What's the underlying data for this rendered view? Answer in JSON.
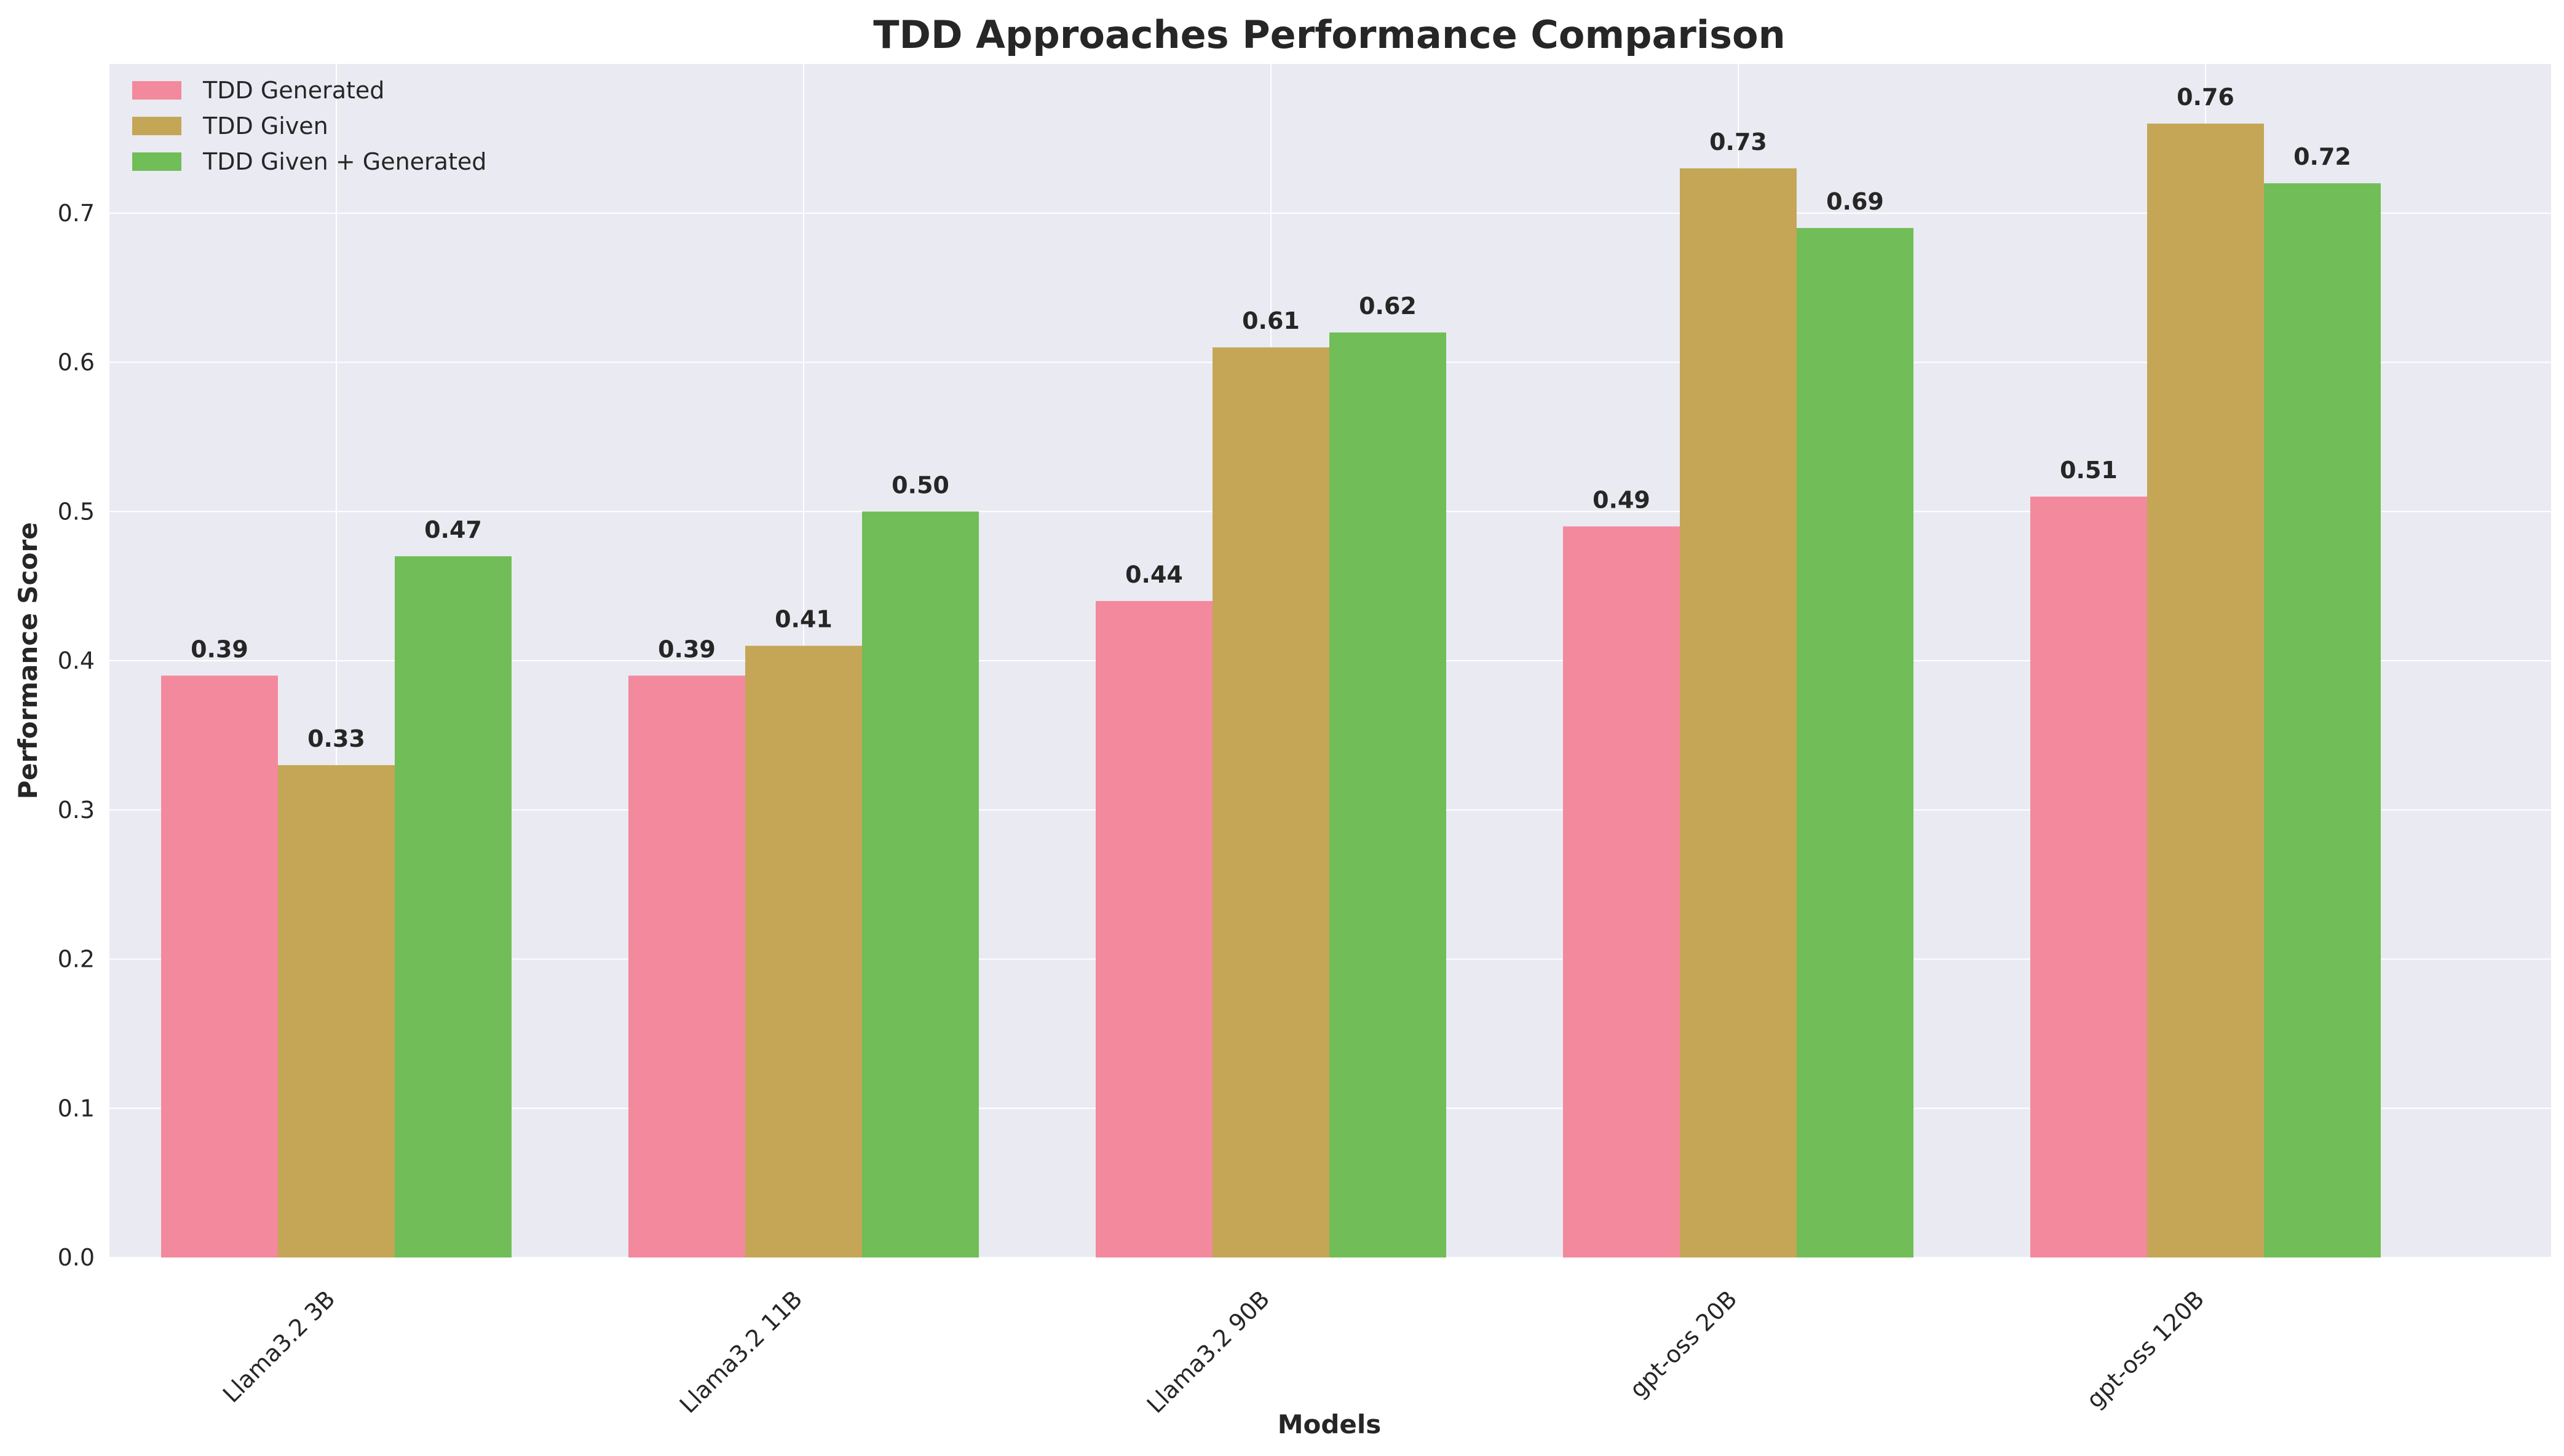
{
  "chart_data": {
    "type": "bar",
    "title": "TDD Approaches Performance Comparison",
    "xlabel": "Models",
    "ylabel": "Performance Score",
    "categories": [
      "Llama3.2 3B",
      "Llama3.2 11B",
      "Llama3.2 90B",
      "gpt-oss 20B",
      "gpt-oss 120B"
    ],
    "series": [
      {
        "name": "TDD Generated",
        "color": "#f3899d",
        "values": [
          0.39,
          0.39,
          0.44,
          0.49,
          0.51
        ]
      },
      {
        "name": "TDD Given",
        "color": "#c4a656",
        "values": [
          0.33,
          0.41,
          0.61,
          0.73,
          0.76
        ]
      },
      {
        "name": "TDD Given + Generated",
        "color": "#71bd57",
        "values": [
          0.47,
          0.5,
          0.62,
          0.69,
          0.72
        ]
      }
    ],
    "data_labels": [
      [
        "0.39",
        "0.39",
        "0.44",
        "0.49",
        "0.51"
      ],
      [
        "0.33",
        "0.41",
        "0.61",
        "0.73",
        "0.76"
      ],
      [
        "0.47",
        "0.50",
        "0.62",
        "0.69",
        "0.72"
      ]
    ],
    "yticks": [
      "0.0",
      "0.1",
      "0.2",
      "0.3",
      "0.4",
      "0.5",
      "0.6",
      "0.7"
    ],
    "ylim": [
      0,
      0.8
    ],
    "grid": true,
    "legend_position": "top-left",
    "colors": {
      "plot_background": "#eaeaf2",
      "grid": "#ffffff"
    }
  }
}
